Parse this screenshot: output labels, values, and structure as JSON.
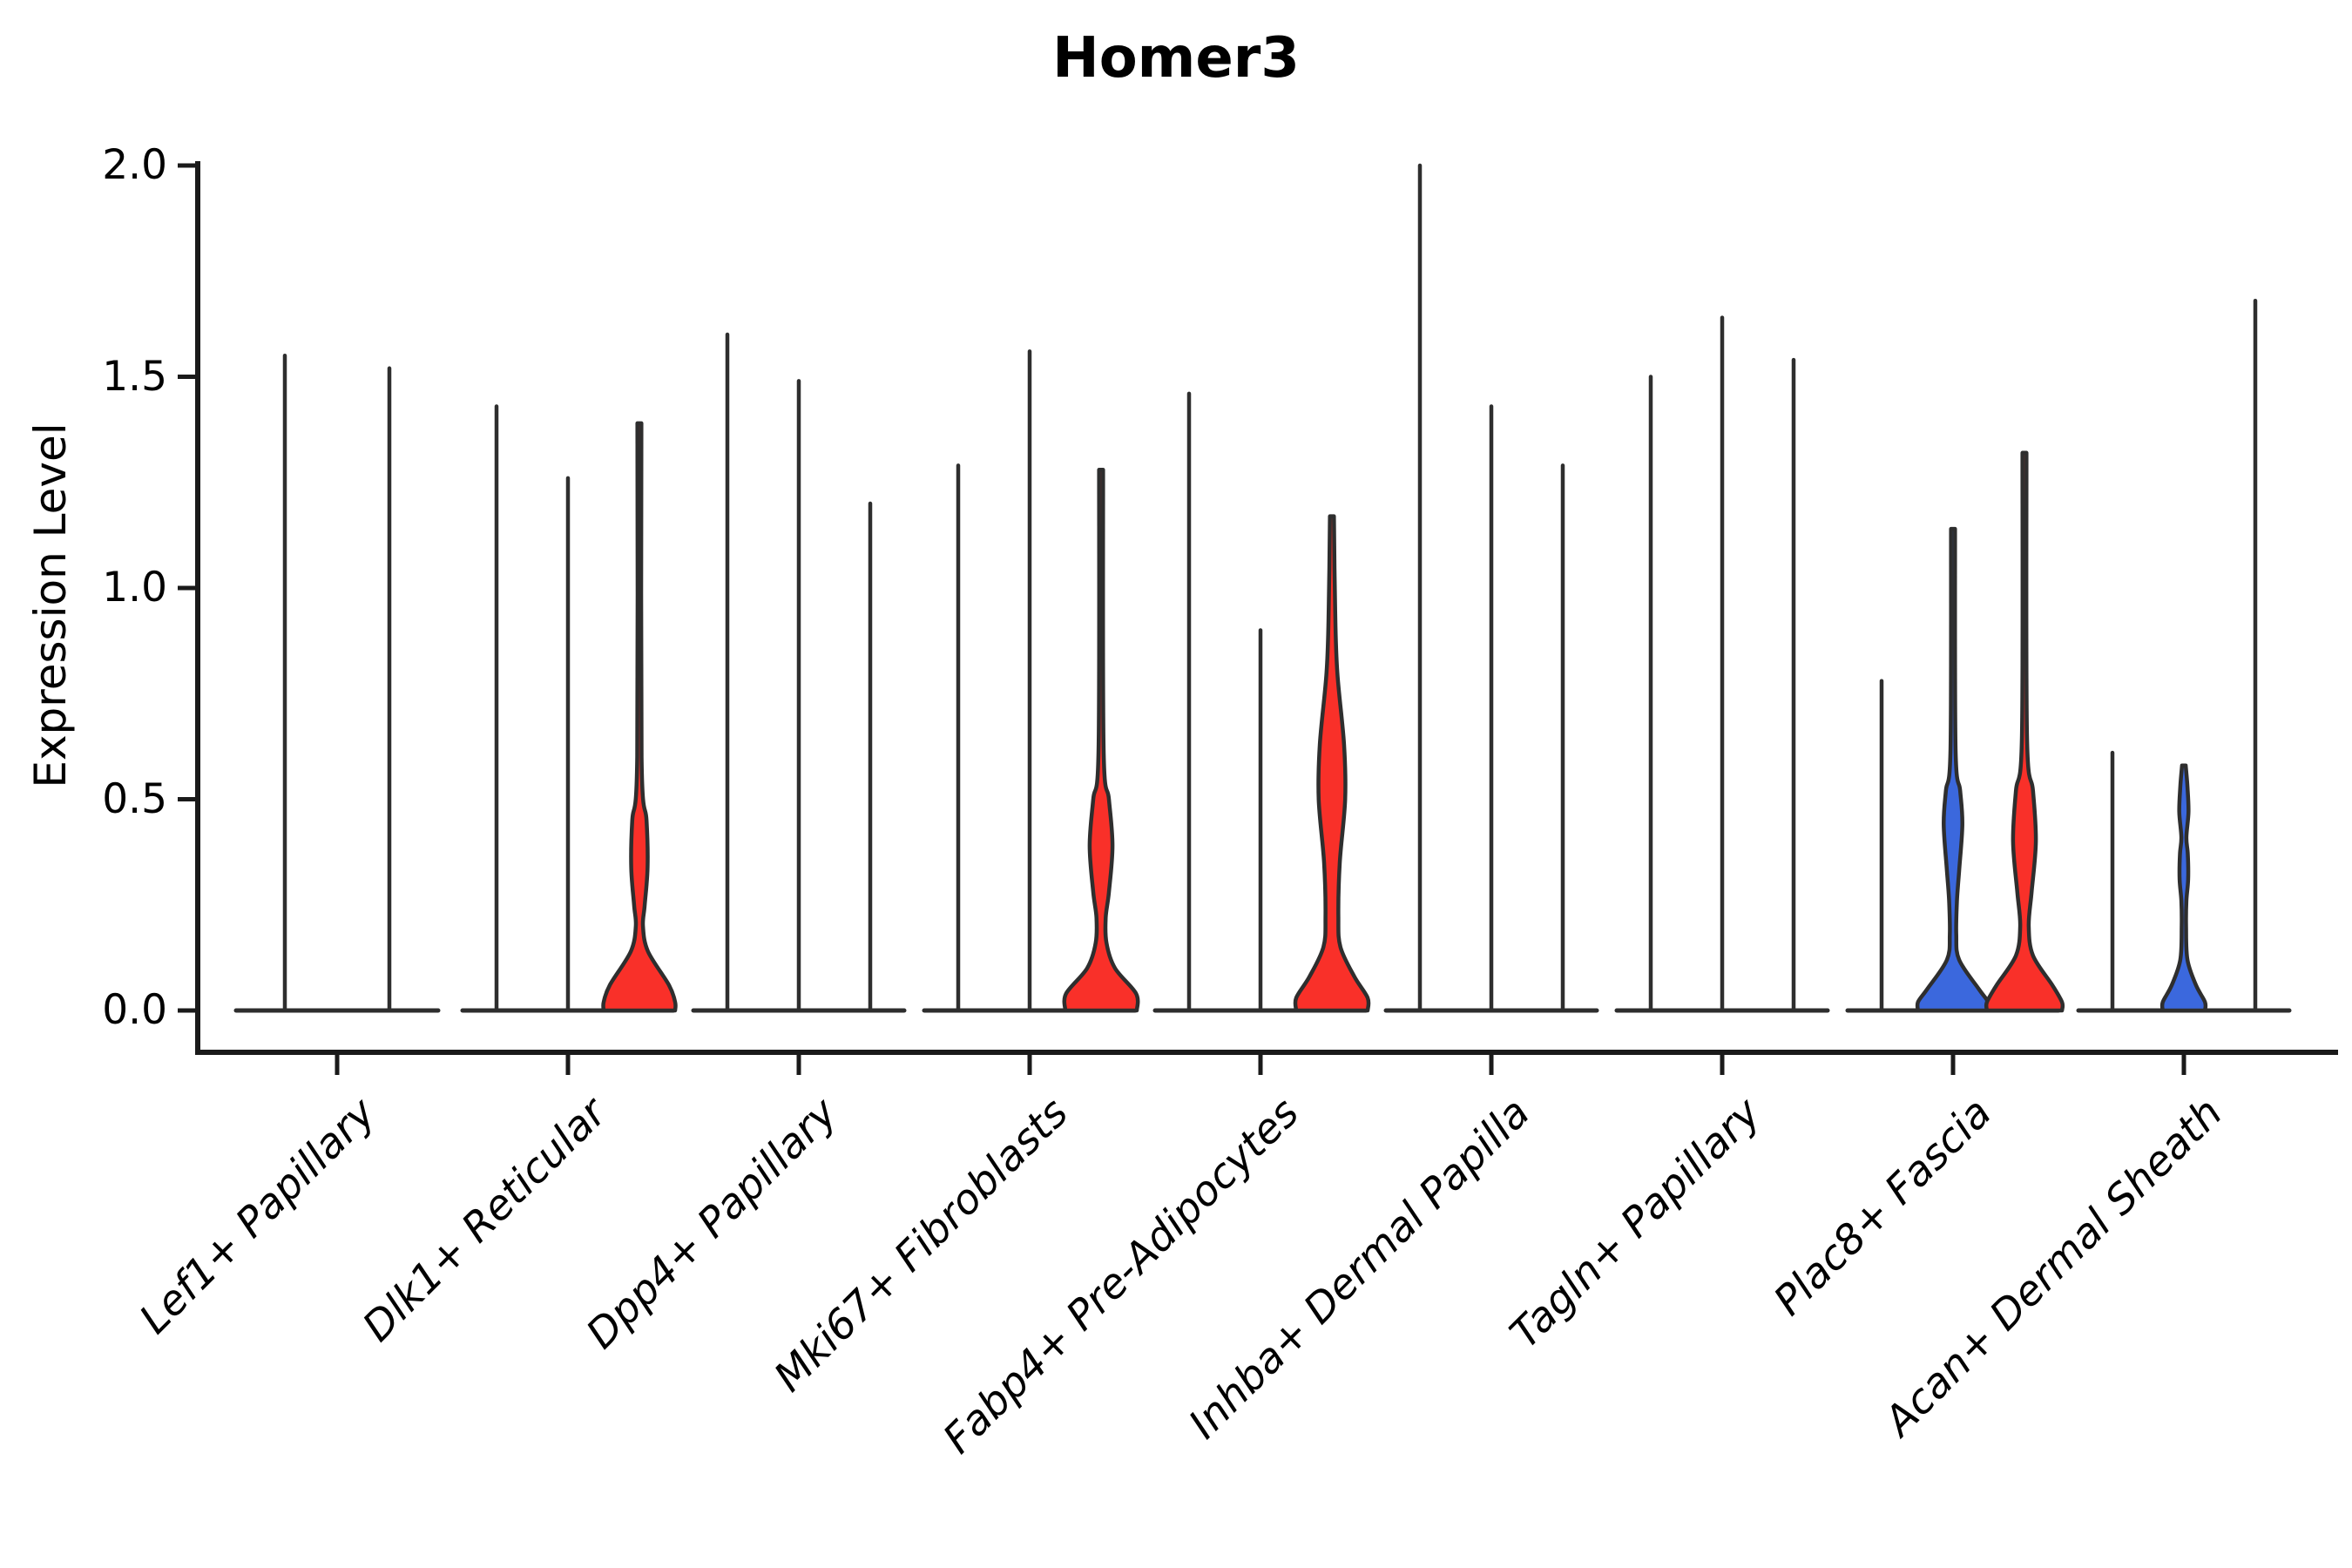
{
  "chart_data": {
    "type": "violin",
    "title": "Homer3",
    "xlabel": "",
    "ylabel": "Expression Level",
    "ylim": [
      0,
      2.0
    ],
    "yticks": [
      0.0,
      0.5,
      1.0,
      1.5,
      2.0
    ],
    "ytick_labels": [
      "0.0",
      "0.5",
      "1.0",
      "1.5",
      "2.0"
    ],
    "grid": false,
    "legend": "none",
    "colors": {
      "blue": "#3b68dd",
      "red": "#f93029",
      "edge": "#2e2e2e",
      "axis": "#1a1a1a"
    },
    "categories": [
      "Lef1+ Papillary",
      "Dlk1+ Reticular",
      "Dpp4+ Papillary",
      "Mki67+ Fibroblasts",
      "Fabp4+ Pre-Adipocytes",
      "Inhba+ Dermal Papilla",
      "Tagln+ Papillary",
      "Plac8+ Fascia",
      "Acan+ Dermal Sheath"
    ],
    "groups": [
      {
        "label": "Lef1+ Papillary",
        "violins": [
          {
            "max": 1.55,
            "fill": null
          },
          {
            "max": 1.52,
            "fill": null
          }
        ]
      },
      {
        "label": "Dlk1+ Reticular",
        "violins": [
          {
            "max": 1.43,
            "fill": null
          },
          {
            "max": 1.26,
            "fill": null
          },
          {
            "max": 1.39,
            "fill": "red",
            "profile": [
              [
                1.39,
                0.055
              ],
              [
                0.6,
                0.06
              ],
              [
                0.45,
                0.2
              ],
              [
                0.34,
                0.23
              ],
              [
                0.25,
                0.15
              ],
              [
                0.2,
                0.1
              ],
              [
                0.14,
                0.24
              ],
              [
                0.06,
                0.83
              ],
              [
                0.02,
                1.0
              ],
              [
                0.0,
                1.0
              ]
            ]
          }
        ]
      },
      {
        "label": "Dpp4+ Papillary",
        "violins": [
          {
            "max": 1.6,
            "fill": null
          },
          {
            "max": 1.49,
            "fill": null
          },
          {
            "max": 1.2,
            "fill": null
          }
        ]
      },
      {
        "label": "Mki67+ Fibroblasts",
        "violins": [
          {
            "max": 1.29,
            "fill": null
          },
          {
            "max": 1.56,
            "fill": null
          },
          {
            "max": 1.28,
            "fill": "red",
            "profile": [
              [
                1.28,
                0.055
              ],
              [
                0.62,
                0.07
              ],
              [
                0.5,
                0.22
              ],
              [
                0.39,
                0.32
              ],
              [
                0.28,
                0.22
              ],
              [
                0.22,
                0.13
              ],
              [
                0.16,
                0.15
              ],
              [
                0.1,
                0.39
              ],
              [
                0.04,
                0.98
              ],
              [
                0.0,
                1.0
              ]
            ]
          }
        ]
      },
      {
        "label": "Fabp4+ Pre-Adipocytes",
        "violins": [
          {
            "max": 1.46,
            "fill": null
          },
          {
            "max": 0.9,
            "fill": null
          },
          {
            "max": 1.17,
            "fill": "red",
            "profile": [
              [
                1.17,
                0.055
              ],
              [
                0.95,
                0.09
              ],
              [
                0.8,
                0.15
              ],
              [
                0.63,
                0.34
              ],
              [
                0.5,
                0.37
              ],
              [
                0.35,
                0.22
              ],
              [
                0.22,
                0.18
              ],
              [
                0.15,
                0.24
              ],
              [
                0.08,
                0.63
              ],
              [
                0.03,
                1.0
              ],
              [
                0.0,
                1.0
              ]
            ]
          }
        ]
      },
      {
        "label": "Inhba+ Dermal Papilla",
        "violins": [
          {
            "max": 2.0,
            "fill": null
          },
          {
            "max": 1.43,
            "fill": null
          },
          {
            "max": 1.29,
            "fill": null
          }
        ]
      },
      {
        "label": "Tagln+ Papillary",
        "violins": [
          {
            "max": 1.5,
            "fill": null
          },
          {
            "max": 1.64,
            "fill": null
          },
          {
            "max": 1.54,
            "fill": null
          }
        ]
      },
      {
        "label": "Plac8+ Fascia",
        "violins": [
          {
            "max": 0.78,
            "fill": null
          },
          {
            "max": 1.14,
            "fill": "blue",
            "profile": [
              [
                1.14,
                0.055
              ],
              [
                0.62,
                0.07
              ],
              [
                0.52,
                0.2
              ],
              [
                0.44,
                0.26
              ],
              [
                0.33,
                0.17
              ],
              [
                0.26,
                0.11
              ],
              [
                0.18,
                0.09
              ],
              [
                0.12,
                0.17
              ],
              [
                0.05,
                0.73
              ],
              [
                0.02,
                0.98
              ],
              [
                0.0,
                0.98
              ]
            ]
          },
          {
            "max": 1.32,
            "fill": "red",
            "profile": [
              [
                1.32,
                0.055
              ],
              [
                0.65,
                0.07
              ],
              [
                0.52,
                0.24
              ],
              [
                0.4,
                0.32
              ],
              [
                0.28,
                0.2
              ],
              [
                0.2,
                0.12
              ],
              [
                0.13,
                0.24
              ],
              [
                0.06,
                0.78
              ],
              [
                0.02,
                1.05
              ],
              [
                0.0,
                1.05
              ]
            ]
          }
        ]
      },
      {
        "label": "Acan+ Dermal Sheath",
        "violins": [
          {
            "max": 0.61,
            "fill": null
          },
          {
            "max": 0.58,
            "fill": "blue",
            "profile": [
              [
                0.58,
                0.05
              ],
              [
                0.53,
                0.1
              ],
              [
                0.47,
                0.13
              ],
              [
                0.41,
                0.07
              ],
              [
                0.37,
                0.11
              ],
              [
                0.31,
                0.12
              ],
              [
                0.26,
                0.07
              ],
              [
                0.2,
                0.06
              ],
              [
                0.12,
                0.1
              ],
              [
                0.06,
                0.34
              ],
              [
                0.02,
                0.59
              ],
              [
                0.0,
                0.59
              ]
            ]
          },
          {
            "max": 1.68,
            "fill": null
          }
        ]
      }
    ]
  }
}
